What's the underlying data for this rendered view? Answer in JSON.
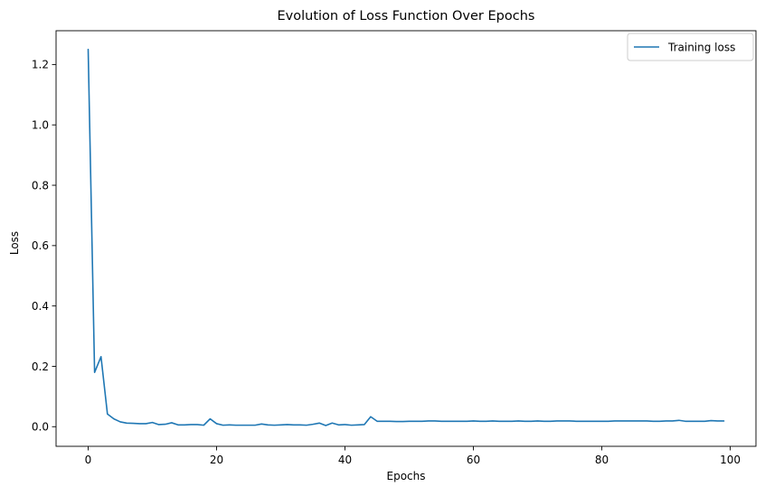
{
  "chart_data": {
    "type": "line",
    "title": "Evolution of Loss Function Over Epochs",
    "xlabel": "Epochs",
    "ylabel": "Loss",
    "xlim": [
      -5,
      104
    ],
    "ylim": [
      -0.065,
      1.312
    ],
    "xticks": [
      0,
      20,
      40,
      60,
      80,
      100
    ],
    "xtick_labels": [
      "0",
      "20",
      "40",
      "60",
      "80",
      "100"
    ],
    "yticks": [
      0.0,
      0.2,
      0.4,
      0.6,
      0.8,
      1.0,
      1.2
    ],
    "ytick_labels": [
      "0.0",
      "0.2",
      "0.4",
      "0.6",
      "0.8",
      "1.0",
      "1.2"
    ],
    "grid": false,
    "legend_position": "top-right",
    "series": [
      {
        "name": "Training loss",
        "color": "#1f77b4",
        "x": [
          0,
          1,
          2,
          3,
          4,
          5,
          6,
          7,
          8,
          9,
          10,
          11,
          12,
          13,
          14,
          15,
          16,
          17,
          18,
          19,
          20,
          21,
          22,
          23,
          24,
          25,
          26,
          27,
          28,
          29,
          30,
          31,
          32,
          33,
          34,
          35,
          36,
          37,
          38,
          39,
          40,
          41,
          42,
          43,
          44,
          45,
          46,
          47,
          48,
          49,
          50,
          51,
          52,
          53,
          54,
          55,
          56,
          57,
          58,
          59,
          60,
          61,
          62,
          63,
          64,
          65,
          66,
          67,
          68,
          69,
          70,
          71,
          72,
          73,
          74,
          75,
          76,
          77,
          78,
          79,
          80,
          81,
          82,
          83,
          84,
          85,
          86,
          87,
          88,
          89,
          90,
          91,
          92,
          93,
          94,
          95,
          96,
          97,
          98,
          99
        ],
        "values": [
          1.25,
          0.18,
          0.232,
          0.042,
          0.026,
          0.016,
          0.012,
          0.011,
          0.01,
          0.01,
          0.014,
          0.007,
          0.008,
          0.013,
          0.006,
          0.006,
          0.007,
          0.007,
          0.005,
          0.026,
          0.01,
          0.005,
          0.006,
          0.005,
          0.005,
          0.005,
          0.005,
          0.009,
          0.006,
          0.005,
          0.006,
          0.007,
          0.006,
          0.006,
          0.005,
          0.008,
          0.012,
          0.004,
          0.012,
          0.006,
          0.007,
          0.005,
          0.006,
          0.007,
          0.033,
          0.018,
          0.018,
          0.018,
          0.017,
          0.017,
          0.018,
          0.018,
          0.018,
          0.019,
          0.019,
          0.018,
          0.018,
          0.018,
          0.018,
          0.018,
          0.019,
          0.018,
          0.018,
          0.019,
          0.018,
          0.018,
          0.018,
          0.019,
          0.018,
          0.018,
          0.019,
          0.018,
          0.018,
          0.019,
          0.019,
          0.019,
          0.018,
          0.018,
          0.018,
          0.018,
          0.018,
          0.018,
          0.019,
          0.019,
          0.019,
          0.019,
          0.019,
          0.019,
          0.018,
          0.018,
          0.019,
          0.019,
          0.021,
          0.018,
          0.018,
          0.018,
          0.018,
          0.02,
          0.019,
          0.019
        ]
      }
    ]
  }
}
